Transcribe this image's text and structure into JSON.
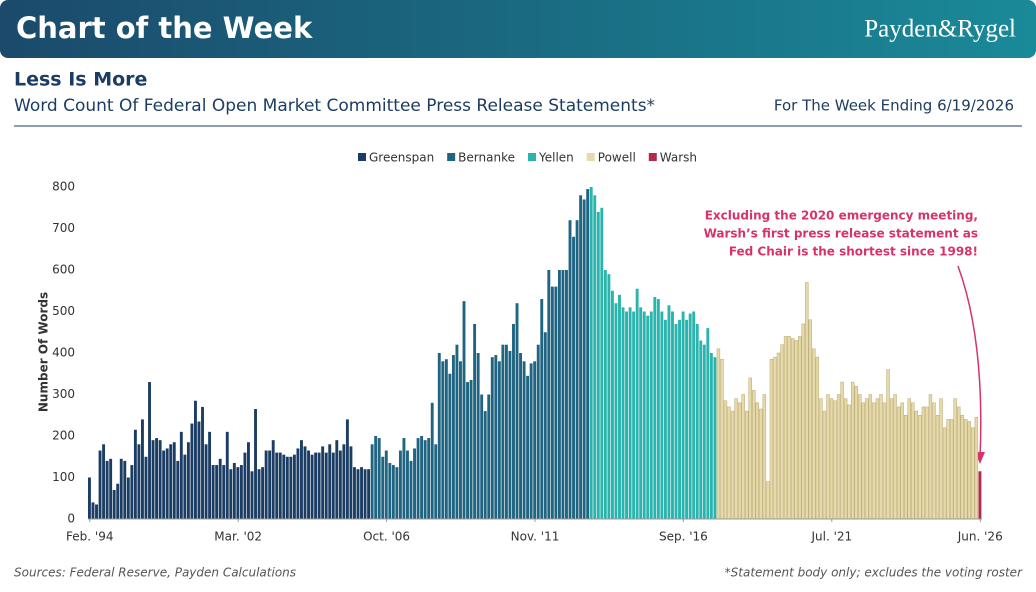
{
  "header": {
    "title": "Chart of the Week",
    "logo": "Payden&Rygel"
  },
  "chart_data": {
    "type": "bar",
    "title": "Less Is More",
    "subtitle": "Word Count Of Federal Open Market Committee Press Release Statements*",
    "date_note": "For The Week Ending 6/19/2026",
    "ylabel": "Number Of Words",
    "annotation": [
      "Excluding the 2020 emergency meeting,",
      "Warsh’s first press release statement as",
      "Fed Chair is the shortest since 1998!"
    ],
    "sources": "Sources: Federal Reserve, Payden Calculations",
    "footnote": "*Statement body only; excludes the voting roster",
    "ylim": [
      0,
      800
    ],
    "yticks": [
      0,
      100,
      200,
      300,
      400,
      500,
      600,
      700,
      800
    ],
    "xticks": [
      {
        "value": 0,
        "label": "Feb. '94"
      },
      {
        "value": 42,
        "label": "Mar. '02"
      },
      {
        "value": 84,
        "label": "Oct. '06"
      },
      {
        "value": 126,
        "label": "Nov. '11"
      },
      {
        "value": 168,
        "label": "Sep. '16"
      },
      {
        "value": 210,
        "label": "Jul. '21"
      },
      {
        "value": 252,
        "label": "Jun. '26"
      }
    ],
    "series": [
      {
        "name": "Greenspan",
        "color": "#1c3d63",
        "values": [
          100,
          40,
          35,
          165,
          180,
          140,
          145,
          70,
          85,
          145,
          140,
          100,
          130,
          215,
          180,
          240,
          150,
          330,
          190,
          195,
          190,
          165,
          170,
          180,
          185,
          140,
          210,
          155,
          185,
          230,
          285,
          235,
          270,
          180,
          210,
          130,
          130,
          145,
          130,
          210,
          120,
          135,
          125,
          130,
          160,
          185,
          115,
          265,
          120,
          125,
          165,
          165,
          190,
          160,
          160,
          155,
          150,
          150,
          155,
          170,
          190,
          175,
          165,
          155,
          160,
          160,
          175,
          160,
          180,
          160,
          190,
          165,
          180,
          240,
          175,
          125,
          120,
          125,
          120,
          120
        ]
      },
      {
        "name": "Bernanke",
        "color": "#1f6480",
        "values": [
          180,
          200,
          195,
          150,
          165,
          135,
          130,
          125,
          165,
          195,
          165,
          140,
          170,
          195,
          200,
          190,
          195,
          280,
          180,
          400,
          380,
          385,
          350,
          395,
          420,
          380,
          525,
          330,
          335,
          470,
          400,
          300,
          260,
          300,
          390,
          395,
          380,
          420,
          420,
          405,
          470,
          520,
          400,
          380,
          345,
          375,
          380,
          420,
          530,
          450,
          600,
          560,
          560,
          600,
          600,
          600,
          720,
          680,
          720,
          780,
          770,
          795
        ]
      },
      {
        "name": "Yellen",
        "color": "#2bb3ad",
        "values": [
          800,
          780,
          740,
          750,
          600,
          590,
          550,
          520,
          540,
          510,
          500,
          510,
          500,
          555,
          510,
          500,
          490,
          500,
          535,
          530,
          500,
          480,
          515,
          500,
          470,
          480,
          500,
          480,
          495,
          500,
          470,
          430,
          420,
          460,
          400,
          390
        ]
      },
      {
        "name": "Powell",
        "color": "#e6d9aa",
        "values": [
          410,
          385,
          285,
          270,
          260,
          290,
          280,
          300,
          260,
          340,
          310,
          280,
          265,
          300,
          90,
          385,
          390,
          400,
          420,
          440,
          440,
          435,
          430,
          440,
          470,
          570,
          480,
          410,
          390,
          290,
          260,
          300,
          290,
          285,
          300,
          330,
          290,
          275,
          330,
          320,
          300,
          280,
          290,
          300,
          280,
          290,
          300,
          280,
          360,
          290,
          300,
          270,
          280,
          250,
          290,
          280,
          260,
          250,
          270,
          270,
          300,
          280,
          250,
          290,
          220,
          240,
          240,
          290,
          270,
          250,
          240,
          235,
          220,
          245
        ]
      },
      {
        "name": "Warsh",
        "color": "#b0294e",
        "values": [
          115
        ]
      }
    ]
  }
}
